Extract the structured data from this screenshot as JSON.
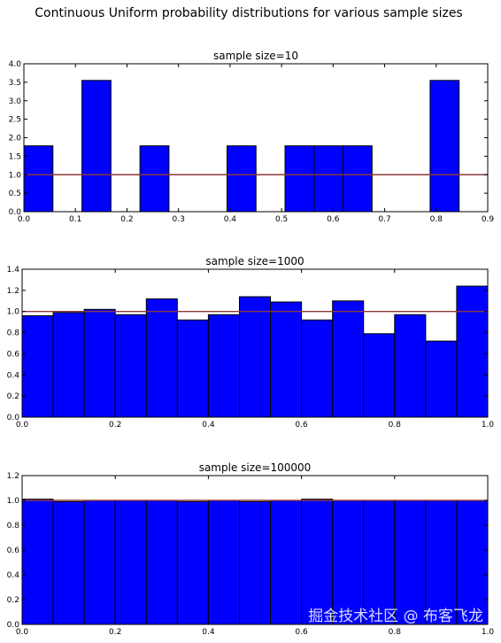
{
  "figure": {
    "suptitle": "Continuous Uniform probability distributions for various sample sizes",
    "watermark": "掘金技术社区 @ 布客飞龙"
  },
  "chart_data": [
    {
      "type": "bar",
      "title": "sample size=10",
      "xlim": [
        0,
        0.9
      ],
      "ylim": [
        0,
        4.0
      ],
      "xticks": [
        "0.0",
        "0.1",
        "0.2",
        "0.3",
        "0.4",
        "0.5",
        "0.6",
        "0.7",
        "0.8",
        "0.9"
      ],
      "yticks": [
        "0.0",
        "0.5",
        "1.0",
        "1.5",
        "2.0",
        "2.5",
        "3.0",
        "3.5",
        "4.0"
      ],
      "bin_edges": [
        0.0,
        0.0563,
        0.1126,
        0.1689,
        0.2252,
        0.2815,
        0.3378,
        0.3941,
        0.4504,
        0.5067,
        0.563,
        0.6193,
        0.6756,
        0.7319,
        0.7882,
        0.8445
      ],
      "values": [
        1.78,
        0,
        3.55,
        0,
        1.78,
        0,
        0,
        1.78,
        0,
        1.78,
        1.78,
        1.78,
        0,
        0,
        3.55
      ],
      "reference_line": 1.0,
      "bar_color": "#0000ff",
      "line_color": "#8b3a3a",
      "grid": false
    },
    {
      "type": "bar",
      "title": "sample size=1000",
      "xlim": [
        0,
        1.0
      ],
      "ylim": [
        0,
        1.4
      ],
      "xticks": [
        "0.0",
        "0.2",
        "0.4",
        "0.6",
        "0.8",
        "1.0"
      ],
      "yticks": [
        "0.0",
        "0.2",
        "0.4",
        "0.6",
        "0.8",
        "1.0",
        "1.2",
        "1.4"
      ],
      "bin_edges": [
        0.0,
        0.0667,
        0.1333,
        0.2,
        0.2667,
        0.3333,
        0.4,
        0.4667,
        0.5333,
        0.6,
        0.6667,
        0.7333,
        0.8,
        0.8667,
        0.9333,
        1.0
      ],
      "values": [
        0.96,
        0.99,
        1.02,
        0.97,
        1.12,
        0.92,
        0.97,
        1.14,
        1.09,
        0.92,
        1.1,
        0.79,
        0.97,
        0.72,
        1.24
      ],
      "reference_line": 1.0,
      "bar_color": "#0000ff",
      "line_color": "#8b3a3a",
      "grid": false
    },
    {
      "type": "bar",
      "title": "sample size=100000",
      "xlim": [
        0,
        1.0
      ],
      "ylim": [
        0,
        1.2
      ],
      "xticks": [
        "0.0",
        "0.2",
        "0.4",
        "0.6",
        "0.8",
        "1.0"
      ],
      "yticks": [
        "0.0",
        "0.2",
        "0.4",
        "0.6",
        "0.8",
        "1.0",
        "1.2"
      ],
      "bin_edges": [
        0.0,
        0.0667,
        0.1333,
        0.2,
        0.2667,
        0.3333,
        0.4,
        0.4667,
        0.5333,
        0.6,
        0.6667,
        0.7333,
        0.8,
        0.8667,
        0.9333,
        1.0
      ],
      "values": [
        1.01,
        0.99,
        1.0,
        1.0,
        1.0,
        0.99,
        1.0,
        0.99,
        1.0,
        1.01,
        1.0,
        1.0,
        1.0,
        1.0,
        1.0
      ],
      "reference_line": 1.0,
      "bar_color": "#0000ff",
      "line_color": "#8b3a3a",
      "grid": false
    }
  ]
}
